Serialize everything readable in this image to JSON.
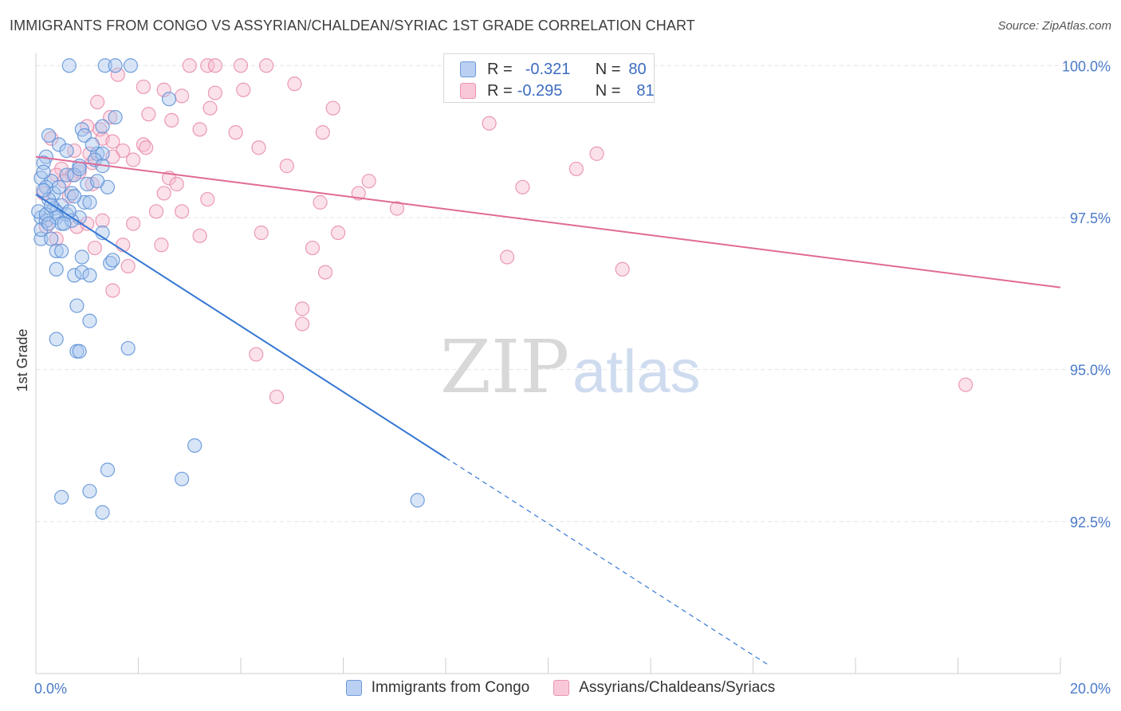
{
  "header": {
    "title": "IMMIGRANTS FROM CONGO VS ASSYRIAN/CHALDEAN/SYRIAC 1ST GRADE CORRELATION CHART",
    "source": "Source: ZipAtlas.com"
  },
  "watermark": {
    "zip": "ZIP",
    "atlas": "atlas"
  },
  "legend": {
    "rows": [
      {
        "r_label": "R =",
        "r_value": "-0.321",
        "n_label": "N =",
        "n_value": "80"
      },
      {
        "r_label": "R =",
        "r_value": "-0.295",
        "n_label": "N =",
        "n_value": "81"
      }
    ]
  },
  "bottom_legend": [
    {
      "label": "Immigrants from Congo"
    },
    {
      "label": "Assyrians/Chaldeans/Syriacs"
    }
  ],
  "colors": {
    "blue_fill": "#a9c6ee",
    "blue_stroke": "#5a8fd6",
    "blue_line": "#3477d4",
    "pink_fill": "#f6bdd0",
    "pink_stroke": "#e88aa9",
    "pink_line": "#e06a96",
    "tick_text": "#4a7ac8",
    "grid": "#e4e4e4"
  },
  "chart_data": {
    "type": "scatter",
    "title": "IMMIGRANTS FROM CONGO VS ASSYRIAN/CHALDEAN/SYRIAC 1ST GRADE CORRELATION CHART",
    "xlabel": "",
    "ylabel": "1st Grade",
    "xlim": [
      0,
      20
    ],
    "ylim": [
      90.0,
      100.2
    ],
    "x_tick_labels": [
      "0.0%",
      "20.0%"
    ],
    "y_ticks": [
      92.5,
      95.0,
      97.5,
      100.0
    ],
    "y_tick_labels": [
      "92.5%",
      "95.0%",
      "97.5%",
      "100.0%"
    ],
    "grid": true,
    "legend_position": "top-center",
    "series": [
      {
        "name": "Immigrants from Congo",
        "r": -0.321,
        "n": 80,
        "trend": {
          "x0": 0.0,
          "y0": 97.88,
          "x1": 8.0,
          "y1": 93.55,
          "dashed_to_x": 14.3
        },
        "points": [
          [
            0.65,
            100.0
          ],
          [
            1.35,
            100.0
          ],
          [
            1.55,
            100.0
          ],
          [
            1.85,
            100.0
          ],
          [
            2.6,
            99.45
          ],
          [
            1.55,
            99.15
          ],
          [
            1.3,
            99.0
          ],
          [
            0.9,
            98.95
          ],
          [
            0.95,
            98.85
          ],
          [
            0.25,
            98.85
          ],
          [
            1.2,
            98.55
          ],
          [
            0.45,
            98.7
          ],
          [
            1.3,
            98.55
          ],
          [
            1.15,
            98.45
          ],
          [
            0.2,
            98.5
          ],
          [
            1.3,
            98.35
          ],
          [
            0.85,
            98.35
          ],
          [
            0.15,
            98.4
          ],
          [
            0.6,
            98.2
          ],
          [
            0.75,
            98.2
          ],
          [
            0.1,
            98.15
          ],
          [
            1.4,
            98.0
          ],
          [
            0.3,
            98.1
          ],
          [
            0.2,
            98.0
          ],
          [
            0.35,
            97.9
          ],
          [
            0.7,
            97.9
          ],
          [
            0.25,
            97.8
          ],
          [
            0.95,
            97.75
          ],
          [
            1.05,
            97.75
          ],
          [
            0.5,
            97.7
          ],
          [
            0.35,
            97.65
          ],
          [
            0.4,
            97.6
          ],
          [
            0.6,
            97.55
          ],
          [
            0.85,
            97.5
          ],
          [
            0.1,
            97.5
          ],
          [
            0.2,
            97.45
          ],
          [
            0.4,
            97.5
          ],
          [
            0.5,
            97.4
          ],
          [
            0.7,
            97.45
          ],
          [
            1.3,
            97.25
          ],
          [
            0.1,
            97.15
          ],
          [
            0.3,
            97.15
          ],
          [
            0.4,
            96.95
          ],
          [
            0.5,
            96.95
          ],
          [
            0.9,
            96.85
          ],
          [
            1.45,
            96.75
          ],
          [
            1.5,
            96.8
          ],
          [
            0.4,
            96.65
          ],
          [
            0.75,
            96.55
          ],
          [
            0.9,
            96.6
          ],
          [
            1.05,
            96.55
          ],
          [
            0.8,
            96.05
          ],
          [
            1.05,
            95.8
          ],
          [
            0.4,
            95.5
          ],
          [
            0.8,
            95.3
          ],
          [
            0.85,
            95.3
          ],
          [
            1.8,
            95.35
          ],
          [
            3.1,
            93.75
          ],
          [
            1.4,
            93.35
          ],
          [
            2.85,
            93.2
          ],
          [
            1.05,
            93.0
          ],
          [
            0.5,
            92.9
          ],
          [
            1.3,
            92.65
          ],
          [
            7.45,
            92.85
          ],
          [
            0.05,
            97.6
          ],
          [
            0.1,
            97.3
          ],
          [
            0.15,
            98.25
          ],
          [
            0.2,
            97.55
          ],
          [
            0.3,
            97.7
          ],
          [
            0.45,
            98.0
          ],
          [
            0.55,
            97.4
          ],
          [
            0.65,
            97.6
          ],
          [
            0.75,
            97.85
          ],
          [
            0.85,
            98.3
          ],
          [
            1.0,
            98.05
          ],
          [
            1.1,
            98.7
          ],
          [
            1.2,
            98.1
          ],
          [
            0.6,
            98.6
          ],
          [
            0.15,
            97.95
          ],
          [
            0.25,
            97.4
          ]
        ]
      },
      {
        "name": "Assyrians/Chaldeans/Syriacs",
        "r": -0.295,
        "n": 81,
        "trend": {
          "x0": 0.0,
          "y0": 98.5,
          "x1": 20.0,
          "y1": 96.35
        },
        "points": [
          [
            3.0,
            100.0
          ],
          [
            3.35,
            100.0
          ],
          [
            3.5,
            100.0
          ],
          [
            4.0,
            100.0
          ],
          [
            4.5,
            100.0
          ],
          [
            5.05,
            99.7
          ],
          [
            1.6,
            99.85
          ],
          [
            2.1,
            99.65
          ],
          [
            2.5,
            99.6
          ],
          [
            2.85,
            99.5
          ],
          [
            3.5,
            99.55
          ],
          [
            4.05,
            99.6
          ],
          [
            1.2,
            99.4
          ],
          [
            1.45,
            99.15
          ],
          [
            2.2,
            99.2
          ],
          [
            2.65,
            99.1
          ],
          [
            3.4,
            99.3
          ],
          [
            5.8,
            99.3
          ],
          [
            8.85,
            99.05
          ],
          [
            1.0,
            99.0
          ],
          [
            1.25,
            98.95
          ],
          [
            3.2,
            98.95
          ],
          [
            3.9,
            98.9
          ],
          [
            5.6,
            98.9
          ],
          [
            1.3,
            98.8
          ],
          [
            1.5,
            98.75
          ],
          [
            2.1,
            98.7
          ],
          [
            2.15,
            98.65
          ],
          [
            4.35,
            98.65
          ],
          [
            0.75,
            98.6
          ],
          [
            1.7,
            98.6
          ],
          [
            1.5,
            98.5
          ],
          [
            10.95,
            98.55
          ],
          [
            1.1,
            98.4
          ],
          [
            0.5,
            98.3
          ],
          [
            0.85,
            98.25
          ],
          [
            4.9,
            98.35
          ],
          [
            10.55,
            98.3
          ],
          [
            0.4,
            98.2
          ],
          [
            0.7,
            98.2
          ],
          [
            1.1,
            98.05
          ],
          [
            2.6,
            98.15
          ],
          [
            2.75,
            98.05
          ],
          [
            6.5,
            98.1
          ],
          [
            9.5,
            98.0
          ],
          [
            2.5,
            97.9
          ],
          [
            6.3,
            97.9
          ],
          [
            3.35,
            97.8
          ],
          [
            5.55,
            97.75
          ],
          [
            7.05,
            97.65
          ],
          [
            2.35,
            97.6
          ],
          [
            2.85,
            97.6
          ],
          [
            1.3,
            97.45
          ],
          [
            1.9,
            97.4
          ],
          [
            0.8,
            97.35
          ],
          [
            1.0,
            97.4
          ],
          [
            4.4,
            97.25
          ],
          [
            5.9,
            97.25
          ],
          [
            3.2,
            97.2
          ],
          [
            0.2,
            97.35
          ],
          [
            0.4,
            97.15
          ],
          [
            1.7,
            97.05
          ],
          [
            1.15,
            97.0
          ],
          [
            5.4,
            97.0
          ],
          [
            9.2,
            96.85
          ],
          [
            1.8,
            96.7
          ],
          [
            11.45,
            96.65
          ],
          [
            5.65,
            96.6
          ],
          [
            1.5,
            96.3
          ],
          [
            5.2,
            96.0
          ],
          [
            5.2,
            95.75
          ],
          [
            4.3,
            95.25
          ],
          [
            4.7,
            94.55
          ],
          [
            18.15,
            94.75
          ],
          [
            0.3,
            98.8
          ],
          [
            0.55,
            98.1
          ],
          [
            0.65,
            97.85
          ],
          [
            1.05,
            98.55
          ],
          [
            1.9,
            98.45
          ],
          [
            0.15,
            97.9
          ],
          [
            2.45,
            97.05
          ]
        ]
      }
    ]
  }
}
